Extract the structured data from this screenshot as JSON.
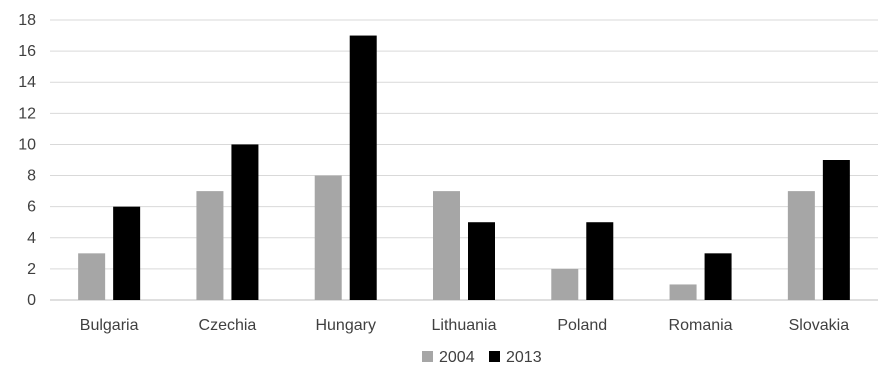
{
  "chart_data": {
    "type": "bar",
    "categories": [
      "Bulgaria",
      "Czechia",
      "Hungary",
      "Lithuania",
      "Poland",
      "Romania",
      "Slovakia"
    ],
    "series": [
      {
        "name": "2004",
        "values": [
          3,
          7,
          8,
          7,
          2,
          1,
          7
        ],
        "color": "#a6a6a6"
      },
      {
        "name": "2013",
        "values": [
          6,
          10,
          17,
          5,
          5,
          3,
          9
        ],
        "color": "#000000"
      }
    ],
    "yticks": [
      "0",
      "2",
      "4",
      "6",
      "8",
      "10",
      "12",
      "14",
      "16",
      "18"
    ],
    "ylim": [
      0,
      18
    ],
    "grid": true,
    "legend_position": "bottom"
  }
}
